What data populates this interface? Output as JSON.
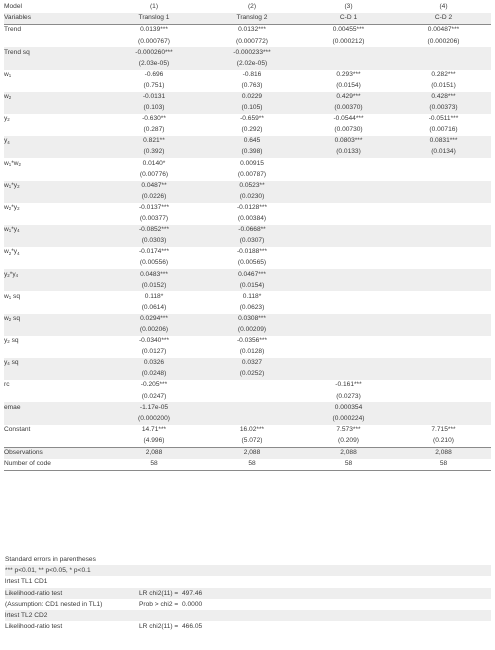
{
  "table": {
    "header_row1": {
      "label": "Model",
      "cols": [
        "(1)",
        "(2)",
        "(3)",
        "(4)"
      ]
    },
    "header_row2": {
      "label": "Variables",
      "cols": [
        "Translog 1",
        "Translog 2",
        "C-D 1",
        "C-D 2"
      ]
    },
    "rows": [
      {
        "label": "Trend",
        "vals": [
          "0.0139***",
          "0.0132***",
          "0.00455***",
          "0.00487***"
        ]
      },
      {
        "label": "",
        "vals": [
          "(0.000767)",
          "(0.000772)",
          "(0.000212)",
          "(0.000206)"
        ]
      },
      {
        "label": "Trend sq",
        "vals": [
          "-0.000260***",
          "-0.000233***",
          "",
          ""
        ]
      },
      {
        "label": "",
        "vals": [
          "(2.03e-05)",
          "(2.02e-05)",
          "",
          ""
        ]
      },
      {
        "label": "w",
        "sub": "1",
        "vals": [
          "-0.696",
          "-0.816",
          "0.293***",
          "0.282***"
        ]
      },
      {
        "label": "",
        "vals": [
          "(0.751)",
          "(0.763)",
          "(0.0154)",
          "(0.0151)"
        ]
      },
      {
        "label": "w",
        "sub": "2",
        "vals": [
          "-0.0131",
          "0.0229",
          "0.429***",
          "0.428***"
        ]
      },
      {
        "label": "",
        "vals": [
          "(0.103)",
          "(0.105)",
          "(0.00370)",
          "(0.00373)"
        ]
      },
      {
        "label": "y",
        "sub": "2",
        "vals": [
          "-0.630**",
          "-0.659**",
          "-0.0544***",
          "-0.0511***"
        ]
      },
      {
        "label": "",
        "vals": [
          "(0.287)",
          "(0.292)",
          "(0.00730)",
          "(0.00716)"
        ]
      },
      {
        "label": "y",
        "sub": "4",
        "vals": [
          "0.821**",
          "0.645",
          "0.0803***",
          "0.0831***"
        ]
      },
      {
        "label": "",
        "vals": [
          "(0.392)",
          "(0.398)",
          "(0.0133)",
          "(0.0134)"
        ]
      },
      {
        "label": "w",
        "sub": "1",
        "mid": "*w",
        "sub2": "2",
        "vals": [
          "0.0140*",
          "0.00915",
          "",
          ""
        ]
      },
      {
        "label": "",
        "vals": [
          "(0.00776)",
          "(0.00787)",
          "",
          ""
        ]
      },
      {
        "label": "w",
        "sub": "1",
        "mid": "*y",
        "sub2": "2",
        "vals": [
          "0.0487**",
          "0.0523**",
          "",
          ""
        ]
      },
      {
        "label": "",
        "vals": [
          "(0.0226)",
          "(0.0230)",
          "",
          ""
        ]
      },
      {
        "label": "w",
        "sub": "2",
        "mid": "*y",
        "sub2": "2",
        "vals": [
          "-0.0137***",
          "-0.0128***",
          "",
          ""
        ]
      },
      {
        "label": "",
        "vals": [
          "(0.00377)",
          "(0.00384)",
          "",
          ""
        ]
      },
      {
        "label": "w",
        "sub": "1",
        "mid": "*y",
        "sub2": "4",
        "vals": [
          "-0.0852***",
          "-0.0668**",
          "",
          ""
        ]
      },
      {
        "label": "",
        "vals": [
          "(0.0303)",
          "(0.0307)",
          "",
          ""
        ]
      },
      {
        "label": "w",
        "sub": "2",
        "mid": "*y",
        "sub2": "4",
        "vals": [
          "-0.0174***",
          "-0.0188***",
          "",
          ""
        ]
      },
      {
        "label": "",
        "vals": [
          "(0.00556)",
          "(0.00565)",
          "",
          ""
        ]
      },
      {
        "label": "y",
        "sub": "2",
        "mid": "*y",
        "sub2": "4",
        "vals": [
          "0.0483***",
          "0.0467***",
          "",
          ""
        ]
      },
      {
        "label": "",
        "vals": [
          "(0.0152)",
          "(0.0154)",
          "",
          ""
        ]
      },
      {
        "label": "w",
        "sub": "1",
        "mid": " sq",
        "vals": [
          "0.118*",
          "0.118*",
          "",
          ""
        ]
      },
      {
        "label": "",
        "vals": [
          "(0.0614)",
          "(0.0623)",
          "",
          ""
        ]
      },
      {
        "label": "w",
        "sub": "2",
        "mid": " sq",
        "vals": [
          "0.0294***",
          "0.0308***",
          "",
          ""
        ]
      },
      {
        "label": "",
        "vals": [
          "(0.00206)",
          "(0.00209)",
          "",
          ""
        ]
      },
      {
        "label": "y",
        "sub": "2",
        "mid": " sq",
        "vals": [
          "-0.0340***",
          "-0.0356***",
          "",
          ""
        ]
      },
      {
        "label": "",
        "vals": [
          "(0.0127)",
          "(0.0128)",
          "",
          ""
        ]
      },
      {
        "label": "y",
        "sub": "4",
        "mid": " sq",
        "vals": [
          "0.0326",
          "0.0327",
          "",
          ""
        ]
      },
      {
        "label": "",
        "vals": [
          "(0.0248)",
          "(0.0252)",
          "",
          ""
        ]
      },
      {
        "label": "rc",
        "vals": [
          "-0.205***",
          "",
          "-0.161***",
          ""
        ]
      },
      {
        "label": "",
        "vals": [
          "(0.0247)",
          "",
          "(0.0273)",
          ""
        ]
      },
      {
        "label": "emae",
        "vals": [
          "-1.17e-05",
          "",
          "0.000354",
          ""
        ]
      },
      {
        "label": "",
        "vals": [
          "(0.000200)",
          "",
          "(0.000224)",
          ""
        ]
      },
      {
        "label": "Constant",
        "vals": [
          "14.71***",
          "16.02***",
          "7.573***",
          "7.715***"
        ]
      },
      {
        "label": "",
        "vals": [
          "(4.996)",
          "(5.072)",
          "(0.209)",
          "(0.210)"
        ]
      },
      {
        "label": "Observations",
        "vals": [
          "2,088",
          "2,088",
          "2,088",
          "2,088"
        ]
      },
      {
        "label": "Number of code",
        "vals": [
          "58",
          "58",
          "58",
          "58"
        ]
      }
    ]
  },
  "footnotes": [
    {
      "a": "Standard errors in parentheses",
      "b": "",
      "c": ""
    },
    {
      "a": "*** p<0.01, ** p<0.05, * p<0.1",
      "b": "",
      "c": ""
    },
    {
      "a": "lrtest TL1 CD1",
      "b": "",
      "c": ""
    },
    {
      "a": "Likelihood-ratio test",
      "b": "LR chi2(11) =",
      "c": "497.46"
    },
    {
      "a": "(Assumption: CD1 nested in TL1)",
      "b": "Prob > chi2 =",
      "c": "0.0000"
    },
    {
      "a": "lrtest TL2 CD2",
      "b": "",
      "c": ""
    },
    {
      "a": "Likelihood-ratio test",
      "b": "LR chi2(11) =",
      "c": "466.05"
    }
  ]
}
